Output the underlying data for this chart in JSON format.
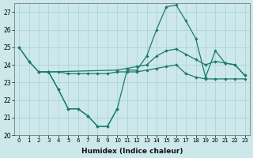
{
  "xlabel": "Humidex (Indice chaleur)",
  "background_color": "#cce8ea",
  "grid_color": "#aad0d0",
  "line_color": "#1a7a6e",
  "x_values": [
    0,
    1,
    2,
    3,
    4,
    5,
    6,
    7,
    8,
    9,
    10,
    11,
    12,
    13,
    14,
    15,
    16,
    17,
    18,
    19,
    20,
    21,
    22,
    23
  ],
  "line1_x": [
    0,
    1,
    2,
    3,
    4,
    5,
    6,
    7,
    8,
    9,
    10,
    11,
    12,
    13,
    14,
    15,
    16,
    17,
    18,
    19,
    20,
    21,
    22,
    23
  ],
  "line1_y": [
    25.0,
    24.2,
    23.6,
    23.6,
    22.6,
    21.5,
    21.5,
    21.1,
    20.5,
    20.5,
    21.5,
    23.7,
    23.7,
    24.5,
    26.0,
    27.3,
    27.4,
    26.5,
    25.5,
    23.3,
    24.8,
    24.1,
    24.0,
    23.4
  ],
  "line2_x": [
    0,
    1,
    2,
    3,
    10,
    11,
    12,
    13,
    14,
    15,
    16,
    17,
    18,
    19,
    20,
    21,
    22,
    23
  ],
  "line2_y": [
    25.0,
    24.2,
    23.6,
    23.6,
    23.7,
    23.8,
    23.9,
    24.0,
    24.5,
    24.8,
    24.9,
    24.6,
    24.3,
    24.0,
    24.2,
    24.1,
    24.0,
    23.4
  ],
  "line3_x": [
    2,
    3,
    4,
    5,
    6,
    7,
    8,
    9,
    10,
    11,
    12,
    13,
    14,
    15,
    16,
    17,
    18,
    19,
    20,
    21,
    22,
    23
  ],
  "line3_y": [
    23.6,
    23.6,
    23.6,
    23.5,
    23.5,
    23.5,
    23.5,
    23.5,
    23.6,
    23.6,
    23.6,
    23.7,
    23.8,
    23.9,
    24.0,
    23.5,
    23.3,
    23.2,
    23.2,
    23.2,
    23.2,
    23.2
  ],
  "line4_x": [
    3,
    4,
    5,
    6,
    7,
    8,
    9,
    10
  ],
  "line4_y": [
    23.6,
    22.6,
    21.5,
    21.5,
    21.1,
    20.5,
    20.5,
    21.5
  ],
  "ylim": [
    20,
    27.5
  ],
  "yticks": [
    20,
    21,
    22,
    23,
    24,
    25,
    26,
    27
  ]
}
